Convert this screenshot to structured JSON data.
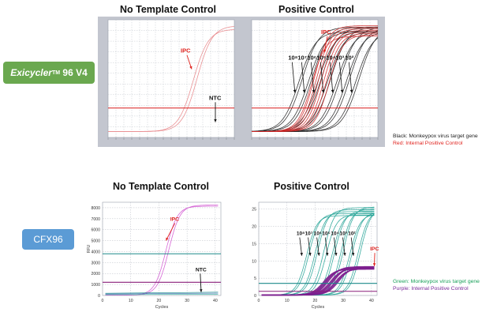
{
  "panels": {
    "top": {
      "platform_label_italic": "Exicycler",
      "platform_label_sup": "TM",
      "platform_label_rest": " 96 V4",
      "left_title": "No Template Control",
      "right_title": "Positive Control",
      "legend": [
        {
          "text": "Black: Monkeypox virus target gene",
          "color": "#222222"
        },
        {
          "text": "Red: Internal Positive Control",
          "color": "#e0241f"
        }
      ]
    },
    "bottom": {
      "platform_label": "CFX96",
      "left_title": "No Template Control",
      "right_title": "Positive Control",
      "legend": [
        {
          "text": "Green: Monkeypox virus target gene",
          "color": "#1aa05a"
        },
        {
          "text": "Purple: Internal Positive Control",
          "color": "#7a2a9a"
        }
      ]
    }
  },
  "chart_data": [
    {
      "id": "exi-ntc",
      "type": "line",
      "title": "No Template Control",
      "xlim": [
        0,
        40
      ],
      "ylim": [
        0,
        1
      ],
      "threshold": {
        "y": 0.25,
        "color": "#d81c1c"
      },
      "series": [
        {
          "name": "IPC",
          "color": "#e8868a",
          "mid": [
            27,
            28.2
          ],
          "plateau": [
            0.92,
            0.95
          ],
          "k": 0.42
        }
      ],
      "annotations": [
        {
          "text": "IPC",
          "color": "#e0241f",
          "at": [
            23,
            0.72
          ],
          "arrow_to": [
            26.5,
            0.58
          ]
        },
        {
          "text": "NTC",
          "color": "#111111",
          "at": [
            32,
            0.32
          ],
          "arrow_to": [
            34,
            0.13
          ]
        }
      ]
    },
    {
      "id": "exi-pos",
      "type": "line",
      "title": "Positive Control",
      "xlim": [
        0,
        40
      ],
      "ylim": [
        0,
        1
      ],
      "threshold": {
        "y": 0.25,
        "color": "#d81c1c"
      },
      "series": [
        {
          "name": "Black: Monkeypox virus target gene",
          "color": "#262626",
          "mids": [
            15,
            16,
            18,
            19,
            21,
            22,
            24,
            25,
            27,
            28,
            30,
            31,
            33,
            34
          ],
          "plateau": [
            0.9,
            0.97
          ],
          "k": 0.38
        },
        {
          "name": "Red: Internal Positive Control",
          "color": "#cf2a2a",
          "mids": [
            19,
            19.8,
            20.5,
            21.2,
            22,
            22.8,
            23.6,
            24.5
          ],
          "plateau": [
            0.86,
            0.95
          ],
          "k": 0.45
        }
      ],
      "dilution_labels": [
        "10⁸",
        "10⁷",
        "10⁶",
        "10⁵",
        "10⁴",
        "10³",
        "10²"
      ],
      "annotations": [
        {
          "text": "IPC",
          "color": "#e0241f",
          "at": [
            22,
            0.88
          ],
          "arrow_to": [
            23,
            0.72
          ]
        }
      ]
    },
    {
      "id": "cfx-ntc",
      "type": "line",
      "title": "No Template Control",
      "xlabel": "Cycles",
      "ylabel": "RFU",
      "xlim": [
        0,
        42
      ],
      "ylim": [
        0,
        8500
      ],
      "xticks": [
        0,
        10,
        20,
        30,
        40
      ],
      "yticks": [
        0,
        1000,
        2000,
        3000,
        4000,
        5000,
        6000,
        7000,
        8000
      ],
      "thresholds": [
        {
          "y": 3800,
          "color": "#1b8a8a"
        },
        {
          "y": 1200,
          "color": "#8a1f7a"
        }
      ],
      "series": [
        {
          "name": "IPC",
          "color": "#d257d2",
          "mids": [
            22.5,
            23.5
          ],
          "plateau": [
            8100,
            8200
          ],
          "k": 0.5
        }
      ],
      "annotations": [
        {
          "text": "IPC",
          "color": "#e0241f",
          "at": [
            24,
            6800
          ],
          "arrow_to": [
            22.5,
            5000
          ]
        },
        {
          "text": "NTC",
          "color": "#111111",
          "at": [
            33,
            2200
          ],
          "arrow_to": [
            35,
            300
          ]
        }
      ]
    },
    {
      "id": "cfx-pos",
      "type": "line",
      "title": "Positive Control",
      "xlabel": "Cycles",
      "xlim": [
        0,
        42
      ],
      "ylim": [
        0,
        27
      ],
      "xticks": [
        0,
        10,
        20,
        30,
        40
      ],
      "yticks": [
        0,
        5,
        10,
        15,
        20,
        25
      ],
      "thresholds": [
        {
          "y": 3.5,
          "color": "#1b8a8a"
        },
        {
          "y": 1.2,
          "color": "#8a1f7a"
        }
      ],
      "series": [
        {
          "name": "Green: Monkeypox virus target gene",
          "color": "#23a396",
          "mids": [
            17,
            17.8,
            20,
            20.8,
            23.1,
            23.9,
            26.1,
            26.9,
            29.2,
            30,
            32.3,
            33.1,
            35.3,
            36.1
          ],
          "plateau": [
            23,
            25.5
          ],
          "k": 0.55
        },
        {
          "name": "Purple: Internal Positive Control",
          "color": "#7d1f8f",
          "mids": [
            23,
            23.6,
            24.2,
            24.8,
            25.4,
            26,
            26.6,
            27.2,
            27.8,
            28.4
          ],
          "plateau": [
            7.5,
            8.2
          ],
          "k": 0.5
        }
      ],
      "dilution_labels": [
        "10⁸",
        "10⁷",
        "10⁶",
        "10⁵",
        "10⁴",
        "10³",
        "10²"
      ],
      "annotations": [
        {
          "text": "IPC",
          "color": "#e0241f",
          "at": [
            39.5,
            13
          ],
          "arrow_to": [
            41,
            8.5
          ]
        }
      ]
    }
  ]
}
